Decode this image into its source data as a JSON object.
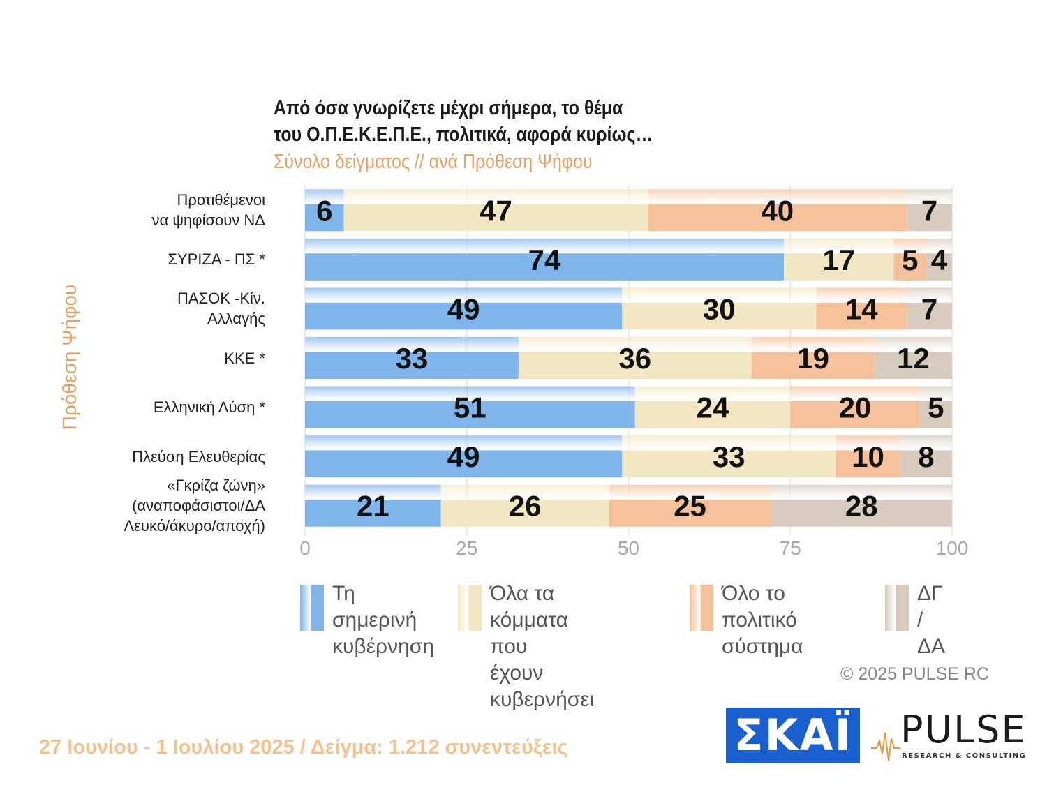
{
  "title": "Από όσα γνωρίζετε μέχρι σήμερα, το θέμα\nτου  Ο.Π.Ε.Κ.Ε.Π.Ε.,  πολιτικά, αφορά κυρίως…",
  "subtitle": "Σύνολο δείγματος // ανά Πρόθεση Ψήφου",
  "y_axis_title": "Πρόθεση Ψήφου",
  "copyright": "©  2025  PULSE RC",
  "footer": "27 Ιουνίου - 1 Ιουλίου 2025  /  Δείγμα:  1.212 συνεντεύξεις",
  "logos": {
    "skai": "ΣΚΑΪ",
    "pulse": "PULSE",
    "pulse_sub": "RESEARCH & CONSULTING"
  },
  "colors": {
    "government": "#7fb5ea",
    "all_parties": "#f3e7c3",
    "whole_system": "#f4c19a",
    "dk_na": "#d6cbbd",
    "axis_text": "#aaaaaa"
  },
  "chart_data": {
    "type": "bar",
    "orientation": "horizontal",
    "stacked": true,
    "categories": [
      "Προτιθέμενοι\nνα ψηφίσουν ΝΔ",
      "ΣΥΡΙΖΑ - ΠΣ *",
      "ΠΑΣΟΚ -Κίν.\nΑλλαγής",
      "ΚΚΕ *",
      "Ελληνική Λύση *",
      "Πλεύση Ελευθερίας",
      "«Γκρίζα ζώνη»\n(αναποφάσιστοι/ΔΑ\nΛευκό/άκυρο/αποχή)"
    ],
    "series": [
      {
        "name": "Τη σημερινή\nκυβέρνηση",
        "color": "#7fb5ea",
        "values": [
          6,
          74,
          49,
          33,
          51,
          49,
          21
        ]
      },
      {
        "name": "Όλα τα κόμματα που\nέχουν κυβερνήσει",
        "color": "#f3e7c3",
        "values": [
          47,
          17,
          30,
          36,
          24,
          33,
          26
        ]
      },
      {
        "name": "Όλο το πολιτικό\nσύστημα",
        "color": "#f4c19a",
        "values": [
          40,
          5,
          14,
          19,
          20,
          10,
          25
        ]
      },
      {
        "name": "ΔΓ /\nΔΑ",
        "color": "#d6cbbd",
        "values": [
          7,
          4,
          7,
          12,
          5,
          8,
          28
        ]
      }
    ],
    "xlim": [
      0,
      100
    ],
    "x_ticks": [
      "0",
      "25",
      "50",
      "75",
      "100"
    ],
    "grid": true,
    "legend_position": "bottom"
  }
}
